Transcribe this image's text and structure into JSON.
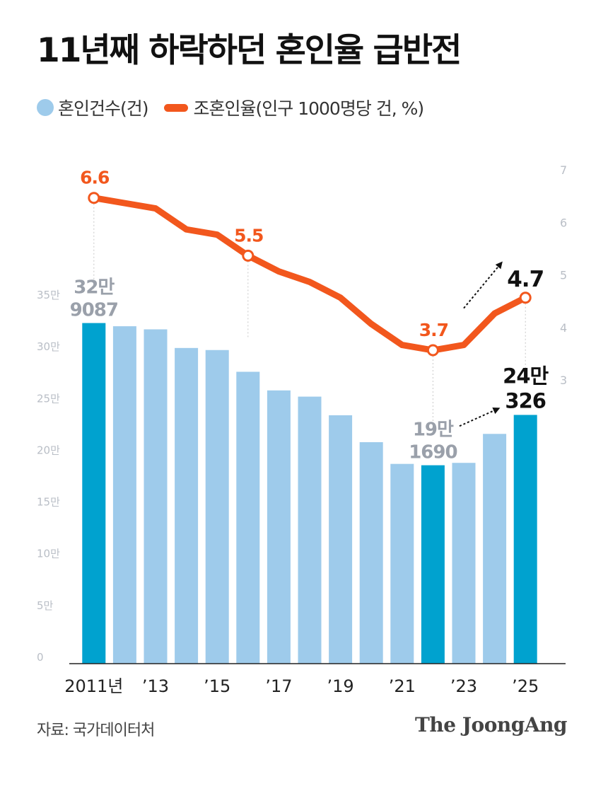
{
  "title": "11년째 하락하던 혼인율 급반전",
  "legend": {
    "bar_label": "혼인건수(건)",
    "line_label": "조혼인율(인구 1000명당 건, %)"
  },
  "source": "자료: 국가데이터처",
  "brand": "The JoongAng",
  "colors": {
    "bar": "#9ecbeb",
    "bar_highlight": "#00a2cf",
    "line": "#f2571d",
    "axis_text": "#b9bec6",
    "annotation_gray": "#9aa0aa",
    "annotation_dark": "#111111"
  },
  "chart_data": {
    "type": "bar",
    "categories": [
      "2011",
      "2012",
      "2013",
      "2014",
      "2015",
      "2016",
      "2017",
      "2018",
      "2019",
      "2020",
      "2021",
      "2022",
      "2023",
      "2024",
      "2025"
    ],
    "x_tick_labels": [
      {
        "index": 0,
        "text": "2011년"
      },
      {
        "index": 2,
        "text": "’13"
      },
      {
        "index": 4,
        "text": "’15"
      },
      {
        "index": 6,
        "text": "’17"
      },
      {
        "index": 8,
        "text": "’19"
      },
      {
        "index": 10,
        "text": "’21"
      },
      {
        "index": 12,
        "text": "’23"
      },
      {
        "index": 14,
        "text": "’25"
      }
    ],
    "series": [
      {
        "name": "혼인건수(건)",
        "type": "bar",
        "axis": "left",
        "values": [
          329087,
          326000,
          323000,
          305000,
          303000,
          282000,
          264000,
          258000,
          240000,
          214000,
          193000,
          191690,
          194000,
          222000,
          240326
        ],
        "highlight_indices": [
          0,
          11,
          14
        ]
      },
      {
        "name": "조혼인율(인구 1000명당 건, %)",
        "type": "line",
        "axis": "right",
        "values": [
          6.6,
          6.5,
          6.4,
          6.0,
          5.9,
          5.5,
          5.2,
          5.0,
          4.7,
          4.2,
          3.8,
          3.7,
          3.8,
          4.4,
          4.7
        ]
      }
    ],
    "y_left": {
      "ylim": [
        0,
        350000
      ],
      "ticks": [
        "0",
        "5만",
        "10만",
        "15만",
        "20만",
        "25만",
        "30만",
        "35만"
      ]
    },
    "y_right": {
      "ylim": [
        3,
        7
      ],
      "ticks": [
        "3",
        "4",
        "5",
        "6",
        "7"
      ]
    },
    "bar_annotations": [
      {
        "index": 0,
        "lines": [
          "32만",
          "9087"
        ],
        "style": "gray"
      },
      {
        "index": 11,
        "lines": [
          "19만",
          "1690"
        ],
        "style": "gray"
      },
      {
        "index": 14,
        "lines": [
          "24만",
          "326"
        ],
        "style": "dark"
      }
    ],
    "line_annotations": [
      {
        "index": 0,
        "text": "6.6",
        "style": "orange"
      },
      {
        "index": 5,
        "text": "5.5",
        "style": "orange"
      },
      {
        "index": 11,
        "text": "3.7",
        "style": "orange"
      },
      {
        "index": 14,
        "text": "4.7",
        "style": "dark"
      }
    ],
    "grid": false,
    "legend_position": "top-left"
  }
}
